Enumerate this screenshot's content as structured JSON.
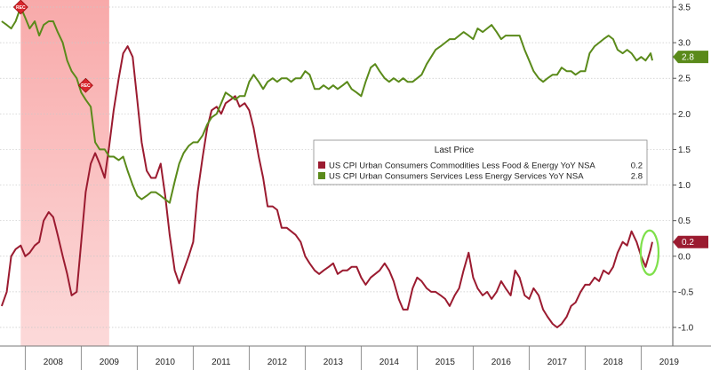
{
  "chart_data": {
    "type": "line",
    "legend": {
      "title": "Last Price",
      "placement": "center-right"
    },
    "y_ticks": [
      "3.5",
      "3.0",
      "2.5",
      "2.0",
      "1.5",
      "1.0",
      "0.5",
      "0.0",
      "-0.5",
      "-1.0"
    ],
    "ylim": [
      -1.15,
      3.55
    ],
    "x_ticks": [
      "2008",
      "2009",
      "2010",
      "2011",
      "2012",
      "2013",
      "2014",
      "2015",
      "2016",
      "2017",
      "2018",
      "2019"
    ],
    "xlim": [
      2007.55,
      2019.55
    ],
    "recession": {
      "start": 2007.92,
      "end": 2009.5,
      "label": "REC"
    },
    "series": [
      {
        "name": "US CPI Urban Consumers Commodities Less Food & Energy YoY NSA",
        "last_label": "0.2",
        "color": "#9b1b30",
        "points": [
          [
            2007.58,
            -0.7
          ],
          [
            2007.67,
            -0.5
          ],
          [
            2007.75,
            0.0
          ],
          [
            2007.83,
            0.1
          ],
          [
            2007.92,
            0.15
          ],
          [
            2008.0,
            0.0
          ],
          [
            2008.08,
            0.05
          ],
          [
            2008.17,
            0.15
          ],
          [
            2008.25,
            0.2
          ],
          [
            2008.33,
            0.5
          ],
          [
            2008.42,
            0.62
          ],
          [
            2008.5,
            0.55
          ],
          [
            2008.58,
            0.3
          ],
          [
            2008.67,
            0.0
          ],
          [
            2008.75,
            -0.25
          ],
          [
            2008.83,
            -0.55
          ],
          [
            2008.92,
            -0.5
          ],
          [
            2009.0,
            0.2
          ],
          [
            2009.08,
            0.9
          ],
          [
            2009.17,
            1.3
          ],
          [
            2009.25,
            1.45
          ],
          [
            2009.33,
            1.3
          ],
          [
            2009.42,
            1.1
          ],
          [
            2009.5,
            1.55
          ],
          [
            2009.58,
            2.05
          ],
          [
            2009.67,
            2.5
          ],
          [
            2009.75,
            2.85
          ],
          [
            2009.83,
            2.95
          ],
          [
            2009.92,
            2.8
          ],
          [
            2010.0,
            2.2
          ],
          [
            2010.08,
            1.6
          ],
          [
            2010.17,
            1.2
          ],
          [
            2010.25,
            1.1
          ],
          [
            2010.33,
            1.1
          ],
          [
            2010.42,
            1.3
          ],
          [
            2010.5,
            0.85
          ],
          [
            2010.58,
            0.3
          ],
          [
            2010.67,
            -0.2
          ],
          [
            2010.75,
            -0.38
          ],
          [
            2010.83,
            -0.2
          ],
          [
            2010.92,
            0.0
          ],
          [
            2011.0,
            0.2
          ],
          [
            2011.08,
            0.9
          ],
          [
            2011.17,
            1.4
          ],
          [
            2011.25,
            1.8
          ],
          [
            2011.33,
            2.05
          ],
          [
            2011.42,
            2.1
          ],
          [
            2011.5,
            2.0
          ],
          [
            2011.58,
            2.15
          ],
          [
            2011.67,
            2.2
          ],
          [
            2011.75,
            2.25
          ],
          [
            2011.83,
            2.1
          ],
          [
            2011.92,
            2.15
          ],
          [
            2012.0,
            2.05
          ],
          [
            2012.08,
            1.8
          ],
          [
            2012.17,
            1.4
          ],
          [
            2012.25,
            1.1
          ],
          [
            2012.33,
            0.7
          ],
          [
            2012.42,
            0.7
          ],
          [
            2012.5,
            0.65
          ],
          [
            2012.58,
            0.4
          ],
          [
            2012.67,
            0.4
          ],
          [
            2012.75,
            0.35
          ],
          [
            2012.83,
            0.3
          ],
          [
            2012.92,
            0.2
          ],
          [
            2013.0,
            0.0
          ],
          [
            2013.08,
            -0.1
          ],
          [
            2013.17,
            -0.2
          ],
          [
            2013.25,
            -0.25
          ],
          [
            2013.33,
            -0.2
          ],
          [
            2013.42,
            -0.15
          ],
          [
            2013.5,
            -0.1
          ],
          [
            2013.58,
            -0.25
          ],
          [
            2013.67,
            -0.2
          ],
          [
            2013.75,
            -0.2
          ],
          [
            2013.83,
            -0.15
          ],
          [
            2013.92,
            -0.15
          ],
          [
            2014.0,
            -0.3
          ],
          [
            2014.08,
            -0.4
          ],
          [
            2014.17,
            -0.3
          ],
          [
            2014.25,
            -0.25
          ],
          [
            2014.33,
            -0.2
          ],
          [
            2014.42,
            -0.1
          ],
          [
            2014.5,
            -0.2
          ],
          [
            2014.58,
            -0.35
          ],
          [
            2014.67,
            -0.6
          ],
          [
            2014.75,
            -0.75
          ],
          [
            2014.83,
            -0.75
          ],
          [
            2014.92,
            -0.45
          ],
          [
            2015.0,
            -0.3
          ],
          [
            2015.08,
            -0.35
          ],
          [
            2015.17,
            -0.45
          ],
          [
            2015.25,
            -0.5
          ],
          [
            2015.33,
            -0.5
          ],
          [
            2015.42,
            -0.55
          ],
          [
            2015.5,
            -0.6
          ],
          [
            2015.58,
            -0.7
          ],
          [
            2015.67,
            -0.55
          ],
          [
            2015.75,
            -0.45
          ],
          [
            2015.83,
            -0.2
          ],
          [
            2015.92,
            0.05
          ],
          [
            2016.0,
            -0.3
          ],
          [
            2016.08,
            -0.45
          ],
          [
            2016.17,
            -0.55
          ],
          [
            2016.25,
            -0.5
          ],
          [
            2016.33,
            -0.6
          ],
          [
            2016.42,
            -0.5
          ],
          [
            2016.5,
            -0.35
          ],
          [
            2016.58,
            -0.45
          ],
          [
            2016.67,
            -0.55
          ],
          [
            2016.75,
            -0.2
          ],
          [
            2016.83,
            -0.3
          ],
          [
            2016.92,
            -0.55
          ],
          [
            2017.0,
            -0.6
          ],
          [
            2017.08,
            -0.45
          ],
          [
            2017.17,
            -0.55
          ],
          [
            2017.25,
            -0.75
          ],
          [
            2017.33,
            -0.85
          ],
          [
            2017.42,
            -0.95
          ],
          [
            2017.5,
            -1.0
          ],
          [
            2017.58,
            -0.95
          ],
          [
            2017.67,
            -0.85
          ],
          [
            2017.75,
            -0.7
          ],
          [
            2017.83,
            -0.65
          ],
          [
            2017.92,
            -0.5
          ],
          [
            2018.0,
            -0.4
          ],
          [
            2018.08,
            -0.4
          ],
          [
            2018.17,
            -0.3
          ],
          [
            2018.25,
            -0.35
          ],
          [
            2018.33,
            -0.2
          ],
          [
            2018.42,
            -0.25
          ],
          [
            2018.5,
            -0.15
          ],
          [
            2018.58,
            0.05
          ],
          [
            2018.67,
            0.2
          ],
          [
            2018.75,
            0.15
          ],
          [
            2018.83,
            0.35
          ],
          [
            2018.92,
            0.2
          ],
          [
            2019.0,
            0.0
          ],
          [
            2019.08,
            -0.15
          ],
          [
            2019.17,
            0.1
          ],
          [
            2019.2,
            0.2
          ]
        ]
      },
      {
        "name": "US CPI Urban Consumers Services Less Energy Services YoY NSA",
        "last_label": "2.8",
        "color": "#5a8a1a",
        "points": [
          [
            2007.58,
            3.3
          ],
          [
            2007.67,
            3.25
          ],
          [
            2007.75,
            3.2
          ],
          [
            2007.83,
            3.3
          ],
          [
            2007.92,
            3.5
          ],
          [
            2008.0,
            3.35
          ],
          [
            2008.08,
            3.2
          ],
          [
            2008.17,
            3.3
          ],
          [
            2008.25,
            3.1
          ],
          [
            2008.33,
            3.25
          ],
          [
            2008.42,
            3.3
          ],
          [
            2008.5,
            3.3
          ],
          [
            2008.58,
            3.15
          ],
          [
            2008.67,
            3.0
          ],
          [
            2008.75,
            2.75
          ],
          [
            2008.83,
            2.6
          ],
          [
            2008.92,
            2.5
          ],
          [
            2009.0,
            2.3
          ],
          [
            2009.08,
            2.2
          ],
          [
            2009.17,
            2.1
          ],
          [
            2009.25,
            1.6
          ],
          [
            2009.33,
            1.5
          ],
          [
            2009.42,
            1.5
          ],
          [
            2009.5,
            1.4
          ],
          [
            2009.58,
            1.4
          ],
          [
            2009.67,
            1.35
          ],
          [
            2009.75,
            1.4
          ],
          [
            2009.83,
            1.2
          ],
          [
            2009.92,
            1.0
          ],
          [
            2010.0,
            0.85
          ],
          [
            2010.08,
            0.8
          ],
          [
            2010.17,
            0.85
          ],
          [
            2010.25,
            0.9
          ],
          [
            2010.33,
            0.9
          ],
          [
            2010.42,
            0.85
          ],
          [
            2010.5,
            0.8
          ],
          [
            2010.58,
            0.75
          ],
          [
            2010.67,
            1.05
          ],
          [
            2010.75,
            1.3
          ],
          [
            2010.83,
            1.45
          ],
          [
            2010.92,
            1.55
          ],
          [
            2011.0,
            1.6
          ],
          [
            2011.08,
            1.6
          ],
          [
            2011.17,
            1.7
          ],
          [
            2011.25,
            1.85
          ],
          [
            2011.33,
            1.95
          ],
          [
            2011.42,
            2.0
          ],
          [
            2011.5,
            2.15
          ],
          [
            2011.58,
            2.3
          ],
          [
            2011.67,
            2.25
          ],
          [
            2011.75,
            2.2
          ],
          [
            2011.83,
            2.25
          ],
          [
            2011.92,
            2.25
          ],
          [
            2012.0,
            2.45
          ],
          [
            2012.08,
            2.55
          ],
          [
            2012.17,
            2.45
          ],
          [
            2012.25,
            2.35
          ],
          [
            2012.33,
            2.45
          ],
          [
            2012.42,
            2.5
          ],
          [
            2012.5,
            2.45
          ],
          [
            2012.58,
            2.5
          ],
          [
            2012.67,
            2.5
          ],
          [
            2012.75,
            2.45
          ],
          [
            2012.83,
            2.5
          ],
          [
            2012.92,
            2.5
          ],
          [
            2013.0,
            2.6
          ],
          [
            2013.08,
            2.55
          ],
          [
            2013.17,
            2.35
          ],
          [
            2013.25,
            2.35
          ],
          [
            2013.33,
            2.4
          ],
          [
            2013.42,
            2.35
          ],
          [
            2013.5,
            2.4
          ],
          [
            2013.58,
            2.35
          ],
          [
            2013.67,
            2.4
          ],
          [
            2013.75,
            2.45
          ],
          [
            2013.83,
            2.35
          ],
          [
            2013.92,
            2.3
          ],
          [
            2014.0,
            2.25
          ],
          [
            2014.08,
            2.45
          ],
          [
            2014.17,
            2.65
          ],
          [
            2014.25,
            2.7
          ],
          [
            2014.33,
            2.6
          ],
          [
            2014.42,
            2.5
          ],
          [
            2014.5,
            2.45
          ],
          [
            2014.58,
            2.5
          ],
          [
            2014.67,
            2.45
          ],
          [
            2014.75,
            2.5
          ],
          [
            2014.83,
            2.45
          ],
          [
            2014.92,
            2.45
          ],
          [
            2015.0,
            2.5
          ],
          [
            2015.08,
            2.55
          ],
          [
            2015.17,
            2.7
          ],
          [
            2015.25,
            2.8
          ],
          [
            2015.33,
            2.9
          ],
          [
            2015.42,
            2.95
          ],
          [
            2015.5,
            3.0
          ],
          [
            2015.58,
            3.05
          ],
          [
            2015.67,
            3.05
          ],
          [
            2015.75,
            3.1
          ],
          [
            2015.83,
            3.15
          ],
          [
            2015.92,
            3.1
          ],
          [
            2016.0,
            3.05
          ],
          [
            2016.08,
            3.2
          ],
          [
            2016.17,
            3.15
          ],
          [
            2016.25,
            3.2
          ],
          [
            2016.33,
            3.25
          ],
          [
            2016.42,
            3.15
          ],
          [
            2016.5,
            3.05
          ],
          [
            2016.58,
            3.1
          ],
          [
            2016.67,
            3.1
          ],
          [
            2016.75,
            3.1
          ],
          [
            2016.83,
            3.1
          ],
          [
            2016.92,
            2.9
          ],
          [
            2017.0,
            2.75
          ],
          [
            2017.08,
            2.6
          ],
          [
            2017.17,
            2.5
          ],
          [
            2017.25,
            2.45
          ],
          [
            2017.33,
            2.5
          ],
          [
            2017.42,
            2.55
          ],
          [
            2017.5,
            2.55
          ],
          [
            2017.58,
            2.65
          ],
          [
            2017.67,
            2.6
          ],
          [
            2017.75,
            2.6
          ],
          [
            2017.83,
            2.55
          ],
          [
            2017.92,
            2.6
          ],
          [
            2018.0,
            2.6
          ],
          [
            2018.08,
            2.85
          ],
          [
            2018.17,
            2.95
          ],
          [
            2018.25,
            3.0
          ],
          [
            2018.33,
            3.05
          ],
          [
            2018.42,
            3.1
          ],
          [
            2018.5,
            3.05
          ],
          [
            2018.58,
            2.9
          ],
          [
            2018.67,
            2.85
          ],
          [
            2018.75,
            2.9
          ],
          [
            2018.83,
            2.85
          ],
          [
            2018.92,
            2.75
          ],
          [
            2019.0,
            2.8
          ],
          [
            2019.08,
            2.75
          ],
          [
            2019.17,
            2.85
          ],
          [
            2019.2,
            2.75
          ]
        ]
      }
    ]
  }
}
